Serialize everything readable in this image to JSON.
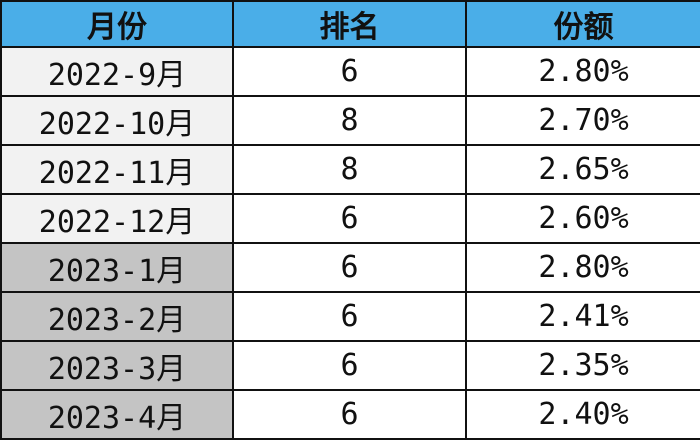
{
  "headers": [
    "月份",
    "排名",
    "份额"
  ],
  "colors": {
    "header_bg": "#4aaee8",
    "row_2022_bg": "#f2f2f2",
    "row_2023_bg": "#c4c4c4"
  },
  "rows": [
    {
      "month": "2022-9月",
      "rank": "6",
      "share": "2.80%"
    },
    {
      "month": "2022-10月",
      "rank": "8",
      "share": "2.70%"
    },
    {
      "month": "2022-11月",
      "rank": "8",
      "share": "2.65%"
    },
    {
      "month": "2022-12月",
      "rank": "6",
      "share": "2.60%"
    },
    {
      "month": "2023-1月",
      "rank": "6",
      "share": "2.80%"
    },
    {
      "month": "2023-2月",
      "rank": "6",
      "share": "2.41%"
    },
    {
      "month": "2023-3月",
      "rank": "6",
      "share": "2.35%"
    },
    {
      "month": "2023-4月",
      "rank": "6",
      "share": "2.40%"
    }
  ]
}
